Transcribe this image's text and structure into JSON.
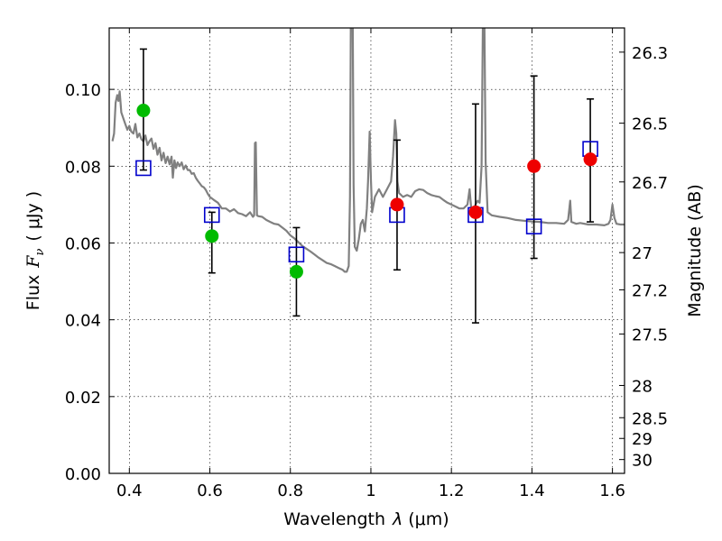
{
  "chart_data": {
    "type": "scatter",
    "xlabel_prefix": "Wavelength",
    "xlabel_lambda": "λ",
    "xlabel_unit": "(μm)",
    "ylabel_prefix": "Flux",
    "ylabel_symbol": "F",
    "ylabel_sub": "ν",
    "ylabel_unit": "( μJy )",
    "y2label": "Magnitude (AB)",
    "xlim": [
      0.35,
      1.63
    ],
    "ylim": [
      0.0,
      0.116
    ],
    "grid": true,
    "x_ticks": [
      0.4,
      0.6,
      0.8,
      1.0,
      1.2,
      1.4,
      1.6
    ],
    "x_tick_labels": [
      "0.4",
      "0.6",
      "0.8",
      "1",
      "1.2",
      "1.4",
      "1.6"
    ],
    "y_ticks": [
      0.0,
      0.02,
      0.04,
      0.06,
      0.08,
      0.1
    ],
    "y_tick_labels": [
      "0.00",
      "0.02",
      "0.04",
      "0.06",
      "0.08",
      "0.10"
    ],
    "y2_ticks": [
      {
        "flux": 0.1097,
        "label": "26.3"
      },
      {
        "flux": 0.0912,
        "label": "26.5"
      },
      {
        "flux": 0.0759,
        "label": "26.7"
      },
      {
        "flux": 0.0575,
        "label": "27"
      },
      {
        "flux": 0.0478,
        "label": "27.2"
      },
      {
        "flux": 0.0363,
        "label": "27.5"
      },
      {
        "flux": 0.0229,
        "label": "28"
      },
      {
        "flux": 0.0145,
        "label": "28.5"
      },
      {
        "flux": 0.0091,
        "label": "29"
      },
      {
        "flux": 0.0036,
        "label": "30"
      }
    ],
    "series": [
      {
        "name": "model_spectrum",
        "kind": "line",
        "color": "#808080",
        "points": [
          [
            0.358,
            0.0865
          ],
          [
            0.362,
            0.0885
          ],
          [
            0.366,
            0.0965
          ],
          [
            0.37,
            0.0985
          ],
          [
            0.373,
            0.097
          ],
          [
            0.376,
            0.0995
          ],
          [
            0.38,
            0.094
          ],
          [
            0.385,
            0.0925
          ],
          [
            0.39,
            0.091
          ],
          [
            0.395,
            0.0895
          ],
          [
            0.4,
            0.0905
          ],
          [
            0.405,
            0.089
          ],
          [
            0.41,
            0.0885
          ],
          [
            0.415,
            0.091
          ],
          [
            0.42,
            0.0875
          ],
          [
            0.425,
            0.0885
          ],
          [
            0.43,
            0.087
          ],
          [
            0.435,
            0.0865
          ],
          [
            0.44,
            0.088
          ],
          [
            0.445,
            0.0855
          ],
          [
            0.45,
            0.0865
          ],
          [
            0.455,
            0.0872
          ],
          [
            0.46,
            0.0845
          ],
          [
            0.465,
            0.086
          ],
          [
            0.47,
            0.083
          ],
          [
            0.475,
            0.0848
          ],
          [
            0.48,
            0.0815
          ],
          [
            0.485,
            0.0835
          ],
          [
            0.49,
            0.0808
          ],
          [
            0.495,
            0.0825
          ],
          [
            0.5,
            0.0805
          ],
          [
            0.505,
            0.0825
          ],
          [
            0.508,
            0.077
          ],
          [
            0.512,
            0.0815
          ],
          [
            0.516,
            0.0795
          ],
          [
            0.52,
            0.081
          ],
          [
            0.525,
            0.08
          ],
          [
            0.53,
            0.081
          ],
          [
            0.535,
            0.0792
          ],
          [
            0.54,
            0.0802
          ],
          [
            0.545,
            0.079
          ],
          [
            0.55,
            0.079
          ],
          [
            0.555,
            0.078
          ],
          [
            0.56,
            0.0782
          ],
          [
            0.565,
            0.077
          ],
          [
            0.57,
            0.0762
          ],
          [
            0.575,
            0.0755
          ],
          [
            0.58,
            0.0748
          ],
          [
            0.585,
            0.0745
          ],
          [
            0.59,
            0.0738
          ],
          [
            0.595,
            0.0728
          ],
          [
            0.6,
            0.072
          ],
          [
            0.61,
            0.0712
          ],
          [
            0.62,
            0.0705
          ],
          [
            0.63,
            0.069
          ],
          [
            0.64,
            0.069
          ],
          [
            0.65,
            0.0682
          ],
          [
            0.66,
            0.0688
          ],
          [
            0.67,
            0.0678
          ],
          [
            0.68,
            0.0675
          ],
          [
            0.69,
            0.067
          ],
          [
            0.7,
            0.068
          ],
          [
            0.707,
            0.0668
          ],
          [
            0.71,
            0.0672
          ],
          [
            0.712,
            0.086
          ],
          [
            0.714,
            0.0862
          ],
          [
            0.717,
            0.0672
          ],
          [
            0.72,
            0.067
          ],
          [
            0.73,
            0.0668
          ],
          [
            0.74,
            0.066
          ],
          [
            0.75,
            0.0655
          ],
          [
            0.76,
            0.065
          ],
          [
            0.77,
            0.0648
          ],
          [
            0.78,
            0.064
          ],
          [
            0.79,
            0.0632
          ],
          [
            0.8,
            0.062
          ],
          [
            0.81,
            0.0612
          ],
          [
            0.82,
            0.0602
          ],
          [
            0.83,
            0.0592
          ],
          [
            0.84,
            0.0585
          ],
          [
            0.85,
            0.0578
          ],
          [
            0.86,
            0.057
          ],
          [
            0.87,
            0.0562
          ],
          [
            0.88,
            0.0555
          ],
          [
            0.89,
            0.0548
          ],
          [
            0.9,
            0.0545
          ],
          [
            0.91,
            0.054
          ],
          [
            0.92,
            0.0535
          ],
          [
            0.93,
            0.053
          ],
          [
            0.935,
            0.0525
          ],
          [
            0.94,
            0.0525
          ],
          [
            0.945,
            0.054
          ],
          [
            0.948,
            0.072
          ],
          [
            0.95,
            0.116
          ],
          [
            0.955,
            0.116
          ],
          [
            0.957,
            0.075
          ],
          [
            0.96,
            0.059
          ],
          [
            0.965,
            0.058
          ],
          [
            0.97,
            0.061
          ],
          [
            0.975,
            0.065
          ],
          [
            0.98,
            0.066
          ],
          [
            0.985,
            0.063
          ],
          [
            0.99,
            0.069
          ],
          [
            0.993,
            0.076
          ],
          [
            0.997,
            0.089
          ],
          [
            1.0,
            0.0765
          ],
          [
            1.003,
            0.068
          ],
          [
            1.01,
            0.072
          ],
          [
            1.02,
            0.074
          ],
          [
            1.03,
            0.072
          ],
          [
            1.04,
            0.074
          ],
          [
            1.05,
            0.076
          ],
          [
            1.055,
            0.0825
          ],
          [
            1.06,
            0.092
          ],
          [
            1.063,
            0.0885
          ],
          [
            1.066,
            0.076
          ],
          [
            1.07,
            0.073
          ],
          [
            1.08,
            0.072
          ],
          [
            1.09,
            0.0725
          ],
          [
            1.1,
            0.072
          ],
          [
            1.11,
            0.0735
          ],
          [
            1.12,
            0.074
          ],
          [
            1.13,
            0.0738
          ],
          [
            1.14,
            0.073
          ],
          [
            1.15,
            0.0725
          ],
          [
            1.16,
            0.0722
          ],
          [
            1.17,
            0.072
          ],
          [
            1.18,
            0.0712
          ],
          [
            1.19,
            0.0705
          ],
          [
            1.2,
            0.07
          ],
          [
            1.21,
            0.0695
          ],
          [
            1.22,
            0.069
          ],
          [
            1.23,
            0.069
          ],
          [
            1.24,
            0.07
          ],
          [
            1.245,
            0.074
          ],
          [
            1.25,
            0.068
          ],
          [
            1.255,
            0.0685
          ],
          [
            1.26,
            0.07
          ],
          [
            1.265,
            0.071
          ],
          [
            1.27,
            0.0705
          ],
          [
            1.275,
            0.08
          ],
          [
            1.278,
            0.116
          ],
          [
            1.282,
            0.116
          ],
          [
            1.285,
            0.081
          ],
          [
            1.29,
            0.068
          ],
          [
            1.3,
            0.0672
          ],
          [
            1.32,
            0.0668
          ],
          [
            1.34,
            0.0665
          ],
          [
            1.36,
            0.066
          ],
          [
            1.38,
            0.0658
          ],
          [
            1.4,
            0.0656
          ],
          [
            1.42,
            0.0655
          ],
          [
            1.44,
            0.0652
          ],
          [
            1.46,
            0.0652
          ],
          [
            1.48,
            0.065
          ],
          [
            1.49,
            0.066
          ],
          [
            1.495,
            0.071
          ],
          [
            1.498,
            0.0655
          ],
          [
            1.51,
            0.065
          ],
          [
            1.52,
            0.0652
          ],
          [
            1.54,
            0.0648
          ],
          [
            1.56,
            0.0648
          ],
          [
            1.58,
            0.0646
          ],
          [
            1.59,
            0.065
          ],
          [
            1.595,
            0.066
          ],
          [
            1.6,
            0.07
          ],
          [
            1.605,
            0.0665
          ],
          [
            1.61,
            0.065
          ],
          [
            1.62,
            0.0648
          ],
          [
            1.63,
            0.0648
          ]
        ]
      },
      {
        "name": "observed_errorbars",
        "kind": "errorbar",
        "color": "#000000",
        "points": [
          {
            "x": 0.435,
            "y": 0.0945,
            "low": 0.079,
            "high": 0.1105
          },
          {
            "x": 0.605,
            "y": 0.062,
            "low": 0.0522,
            "high": 0.068
          },
          {
            "x": 0.815,
            "y": 0.0525,
            "low": 0.041,
            "high": 0.064
          },
          {
            "x": 1.065,
            "y": 0.07,
            "low": 0.053,
            "high": 0.0868
          },
          {
            "x": 1.26,
            "y": 0.068,
            "low": 0.0392,
            "high": 0.0962
          },
          {
            "x": 1.405,
            "y": 0.08,
            "low": 0.056,
            "high": 0.1035
          },
          {
            "x": 1.545,
            "y": 0.0815,
            "low": 0.0655,
            "high": 0.0975
          }
        ]
      },
      {
        "name": "model_photometry",
        "kind": "square",
        "color": "#0000cc",
        "points": [
          [
            0.435,
            0.0795
          ],
          [
            0.605,
            0.0673
          ],
          [
            0.815,
            0.057
          ],
          [
            1.065,
            0.0673
          ],
          [
            1.26,
            0.0673
          ],
          [
            1.405,
            0.0643
          ],
          [
            1.545,
            0.0845
          ]
        ]
      },
      {
        "name": "detections_optical",
        "kind": "circle",
        "color": "#00bb00",
        "points": [
          [
            0.435,
            0.0945
          ],
          [
            0.605,
            0.0618
          ],
          [
            0.815,
            0.0525
          ]
        ]
      },
      {
        "name": "detections_nir",
        "kind": "circle",
        "color": "#ee0000",
        "points": [
          [
            1.065,
            0.07
          ],
          [
            1.26,
            0.068
          ],
          [
            1.405,
            0.08
          ],
          [
            1.545,
            0.0818
          ]
        ]
      }
    ]
  }
}
